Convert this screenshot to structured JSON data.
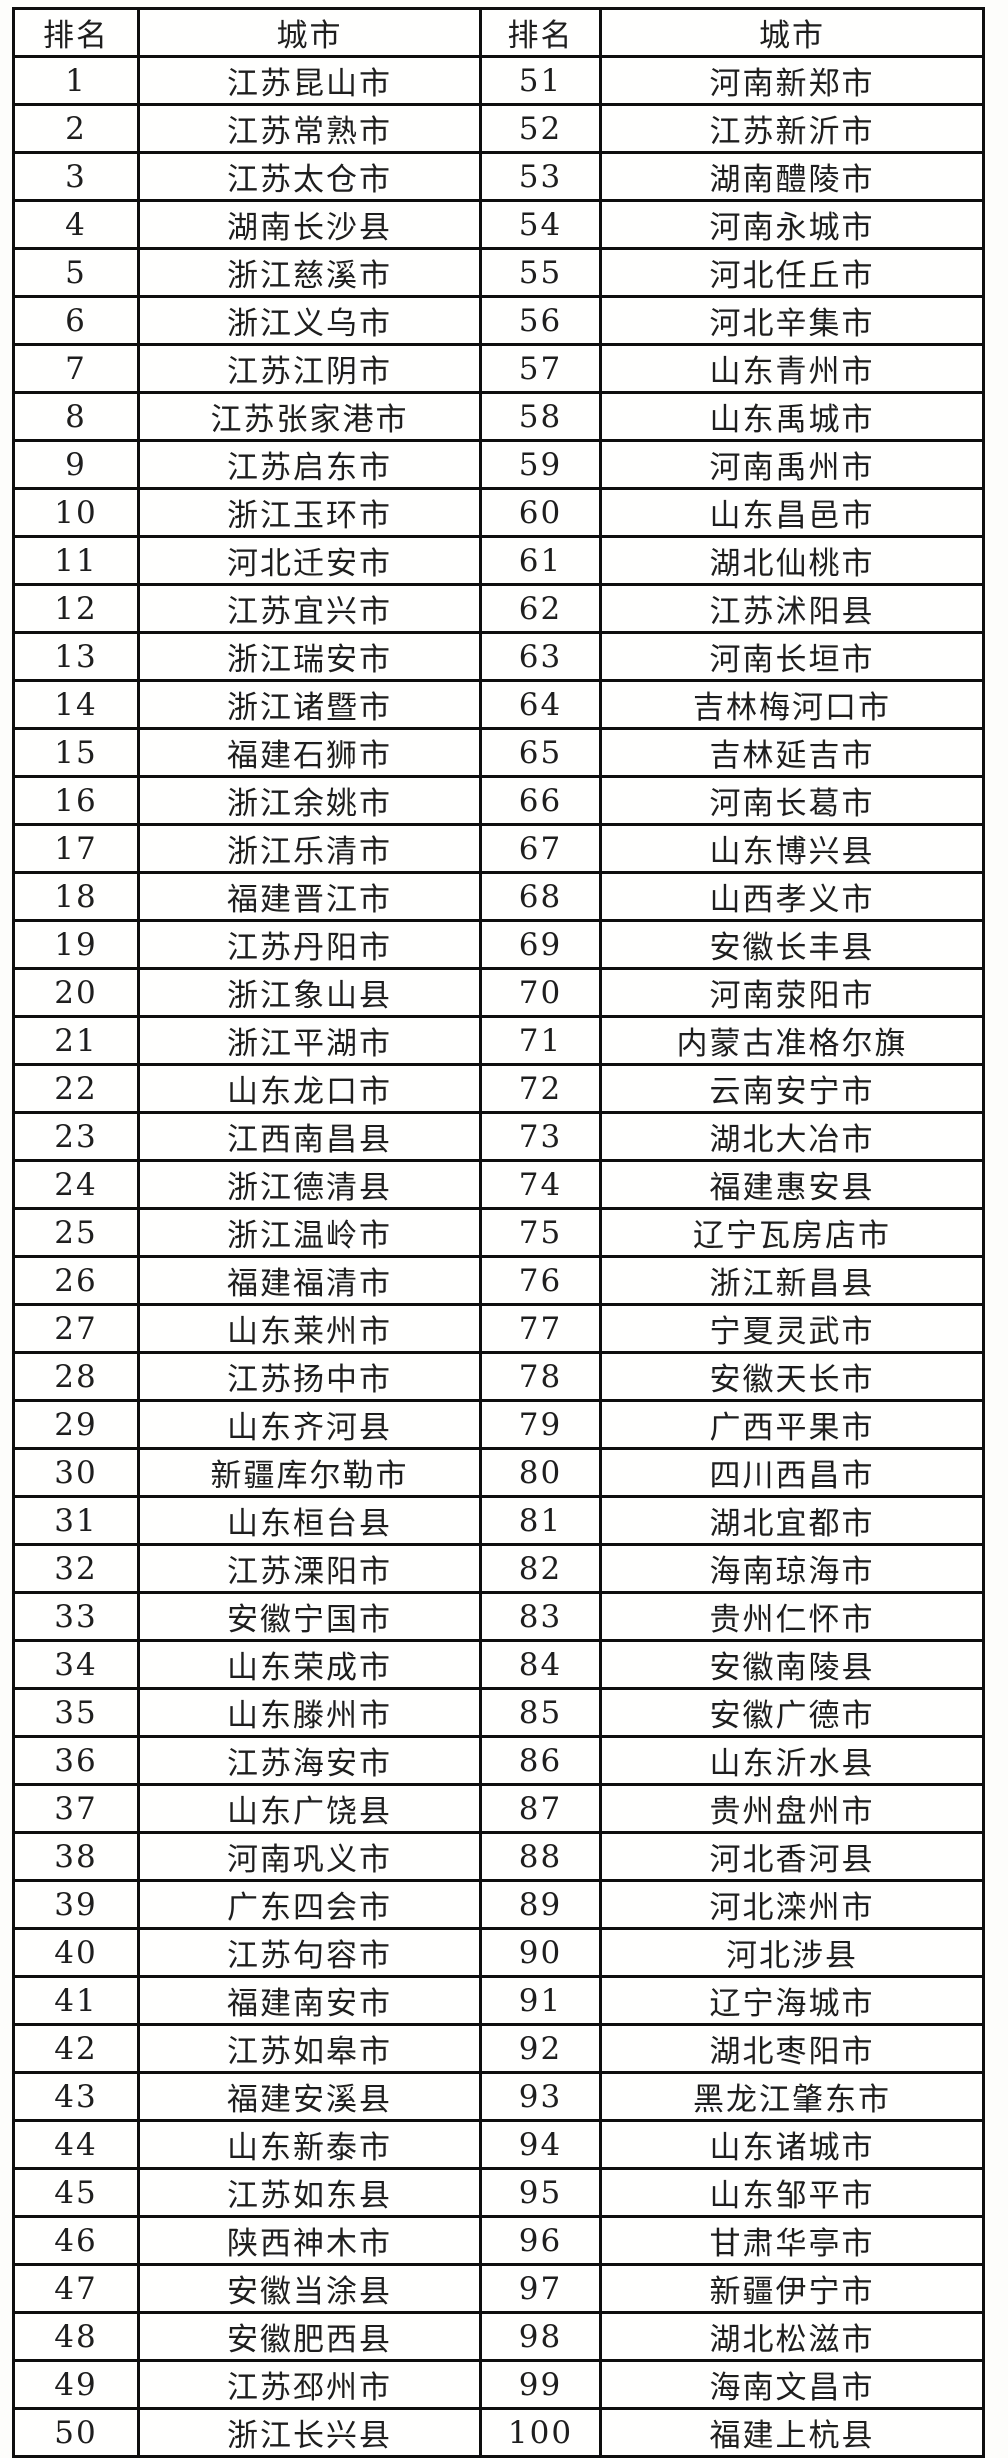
{
  "colors": {
    "border": "#0e0e0e",
    "text": "#1e1e1e",
    "cell_background": "#fffffe",
    "page_background": "#fdfdfb"
  },
  "table": {
    "headers": [
      "排名",
      "城市",
      "排名",
      "城市"
    ],
    "left_column": [
      {
        "rank": "1",
        "city": "江苏昆山市"
      },
      {
        "rank": "2",
        "city": "江苏常熟市"
      },
      {
        "rank": "3",
        "city": "江苏太仓市"
      },
      {
        "rank": "4",
        "city": "湖南长沙县"
      },
      {
        "rank": "5",
        "city": "浙江慈溪市"
      },
      {
        "rank": "6",
        "city": "浙江义乌市"
      },
      {
        "rank": "7",
        "city": "江苏江阴市"
      },
      {
        "rank": "8",
        "city": "江苏张家港市"
      },
      {
        "rank": "9",
        "city": "江苏启东市"
      },
      {
        "rank": "10",
        "city": "浙江玉环市"
      },
      {
        "rank": "11",
        "city": "河北迁安市"
      },
      {
        "rank": "12",
        "city": "江苏宜兴市"
      },
      {
        "rank": "13",
        "city": "浙江瑞安市"
      },
      {
        "rank": "14",
        "city": "浙江诸暨市"
      },
      {
        "rank": "15",
        "city": "福建石狮市"
      },
      {
        "rank": "16",
        "city": "浙江余姚市"
      },
      {
        "rank": "17",
        "city": "浙江乐清市"
      },
      {
        "rank": "18",
        "city": "福建晋江市"
      },
      {
        "rank": "19",
        "city": "江苏丹阳市"
      },
      {
        "rank": "20",
        "city": "浙江象山县"
      },
      {
        "rank": "21",
        "city": "浙江平湖市"
      },
      {
        "rank": "22",
        "city": "山东龙口市"
      },
      {
        "rank": "23",
        "city": "江西南昌县"
      },
      {
        "rank": "24",
        "city": "浙江德清县"
      },
      {
        "rank": "25",
        "city": "浙江温岭市"
      },
      {
        "rank": "26",
        "city": "福建福清市"
      },
      {
        "rank": "27",
        "city": "山东莱州市"
      },
      {
        "rank": "28",
        "city": "江苏扬中市"
      },
      {
        "rank": "29",
        "city": "山东齐河县"
      },
      {
        "rank": "30",
        "city": "新疆库尔勒市"
      },
      {
        "rank": "31",
        "city": "山东桓台县"
      },
      {
        "rank": "32",
        "city": "江苏溧阳市"
      },
      {
        "rank": "33",
        "city": "安徽宁国市"
      },
      {
        "rank": "34",
        "city": "山东荣成市"
      },
      {
        "rank": "35",
        "city": "山东滕州市"
      },
      {
        "rank": "36",
        "city": "江苏海安市"
      },
      {
        "rank": "37",
        "city": "山东广饶县"
      },
      {
        "rank": "38",
        "city": "河南巩义市"
      },
      {
        "rank": "39",
        "city": "广东四会市"
      },
      {
        "rank": "40",
        "city": "江苏句容市"
      },
      {
        "rank": "41",
        "city": "福建南安市"
      },
      {
        "rank": "42",
        "city": "江苏如皋市"
      },
      {
        "rank": "43",
        "city": "福建安溪县"
      },
      {
        "rank": "44",
        "city": "山东新泰市"
      },
      {
        "rank": "45",
        "city": "江苏如东县"
      },
      {
        "rank": "46",
        "city": "陕西神木市"
      },
      {
        "rank": "47",
        "city": "安徽当涂县"
      },
      {
        "rank": "48",
        "city": "安徽肥西县"
      },
      {
        "rank": "49",
        "city": "江苏邳州市"
      },
      {
        "rank": "50",
        "city": "浙江长兴县"
      }
    ],
    "right_column": [
      {
        "rank": "51",
        "city": "河南新郑市"
      },
      {
        "rank": "52",
        "city": "江苏新沂市"
      },
      {
        "rank": "53",
        "city": "湖南醴陵市"
      },
      {
        "rank": "54",
        "city": "河南永城市"
      },
      {
        "rank": "55",
        "city": "河北任丘市"
      },
      {
        "rank": "56",
        "city": "河北辛集市"
      },
      {
        "rank": "57",
        "city": "山东青州市"
      },
      {
        "rank": "58",
        "city": "山东禹城市"
      },
      {
        "rank": "59",
        "city": "河南禹州市"
      },
      {
        "rank": "60",
        "city": "山东昌邑市"
      },
      {
        "rank": "61",
        "city": "湖北仙桃市"
      },
      {
        "rank": "62",
        "city": "江苏沭阳县"
      },
      {
        "rank": "63",
        "city": "河南长垣市"
      },
      {
        "rank": "64",
        "city": "吉林梅河口市"
      },
      {
        "rank": "65",
        "city": "吉林延吉市"
      },
      {
        "rank": "66",
        "city": "河南长葛市"
      },
      {
        "rank": "67",
        "city": "山东博兴县"
      },
      {
        "rank": "68",
        "city": "山西孝义市"
      },
      {
        "rank": "69",
        "city": "安徽长丰县"
      },
      {
        "rank": "70",
        "city": "河南荥阳市"
      },
      {
        "rank": "71",
        "city": "内蒙古准格尔旗"
      },
      {
        "rank": "72",
        "city": "云南安宁市"
      },
      {
        "rank": "73",
        "city": "湖北大冶市"
      },
      {
        "rank": "74",
        "city": "福建惠安县"
      },
      {
        "rank": "75",
        "city": "辽宁瓦房店市"
      },
      {
        "rank": "76",
        "city": "浙江新昌县"
      },
      {
        "rank": "77",
        "city": "宁夏灵武市"
      },
      {
        "rank": "78",
        "city": "安徽天长市"
      },
      {
        "rank": "79",
        "city": "广西平果市"
      },
      {
        "rank": "80",
        "city": "四川西昌市"
      },
      {
        "rank": "81",
        "city": "湖北宜都市"
      },
      {
        "rank": "82",
        "city": "海南琼海市"
      },
      {
        "rank": "83",
        "city": "贵州仁怀市"
      },
      {
        "rank": "84",
        "city": "安徽南陵县"
      },
      {
        "rank": "85",
        "city": "安徽广德市"
      },
      {
        "rank": "86",
        "city": "山东沂水县"
      },
      {
        "rank": "87",
        "city": "贵州盘州市"
      },
      {
        "rank": "88",
        "city": "河北香河县"
      },
      {
        "rank": "89",
        "city": "河北滦州市"
      },
      {
        "rank": "90",
        "city": "河北涉县"
      },
      {
        "rank": "91",
        "city": "辽宁海城市"
      },
      {
        "rank": "92",
        "city": "湖北枣阳市"
      },
      {
        "rank": "93",
        "city": "黑龙江肇东市"
      },
      {
        "rank": "94",
        "city": "山东诸城市"
      },
      {
        "rank": "95",
        "city": "山东邹平市"
      },
      {
        "rank": "96",
        "city": "甘肃华亭市"
      },
      {
        "rank": "97",
        "city": "新疆伊宁市"
      },
      {
        "rank": "98",
        "city": "湖北松滋市"
      },
      {
        "rank": "99",
        "city": "海南文昌市"
      },
      {
        "rank": "100",
        "city": "福建上杭县"
      }
    ]
  }
}
